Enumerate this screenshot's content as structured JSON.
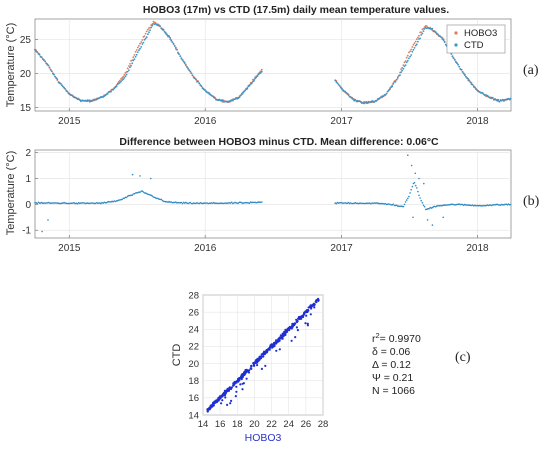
{
  "chart_data": [
    {
      "type": "scatter",
      "panel_label": "(a)",
      "title": "HOBO3 (17m) vs CTD (17.5m) daily mean temperature values.",
      "ylabel": "Temperature (°C)",
      "xlabel": "",
      "xlim": [
        "2014-10-01",
        "2018-04-01"
      ],
      "ylim": [
        14.5,
        28
      ],
      "yticks": [
        15,
        20,
        25
      ],
      "xticks": [
        {
          "label": "2015",
          "date": "2015-01-01"
        },
        {
          "label": "2016",
          "date": "2016-01-01"
        },
        {
          "label": "2017",
          "date": "2017-01-01"
        },
        {
          "label": "2018",
          "date": "2018-01-01"
        }
      ],
      "grid": true,
      "legend_position": "top-right",
      "series": [
        {
          "name": "HOBO3",
          "color": "#e37b5d",
          "segments": [
            {
              "x": [
                "2014-10-01",
                "2014-11-01",
                "2014-12-01",
                "2015-01-01",
                "2015-02-01",
                "2015-03-01",
                "2015-04-01",
                "2015-05-01",
                "2015-06-01",
                "2015-07-01",
                "2015-08-01",
                "2015-08-15",
                "2015-09-01",
                "2015-10-01",
                "2015-11-01",
                "2015-12-01",
                "2016-01-01",
                "2016-02-01",
                "2016-03-01",
                "2016-04-01",
                "2016-05-01",
                "2016-06-01"
              ],
              "y": [
                23.5,
                21.5,
                19.0,
                17.0,
                16.0,
                16.0,
                16.6,
                17.8,
                20.0,
                23.5,
                26.5,
                27.5,
                27.0,
                25.0,
                22.0,
                19.5,
                17.5,
                16.2,
                15.8,
                16.5,
                18.5,
                20.5
              ]
            },
            {
              "x": [
                "2016-12-15",
                "2017-01-01",
                "2017-02-01",
                "2017-03-01",
                "2017-04-01",
                "2017-05-01",
                "2017-06-01",
                "2017-07-01",
                "2017-08-01",
                "2017-08-15",
                "2017-09-01",
                "2017-10-01",
                "2017-11-01",
                "2017-12-01",
                "2018-01-01",
                "2018-02-01",
                "2018-03-01",
                "2018-04-01"
              ],
              "y": [
                19.0,
                17.8,
                16.2,
                15.7,
                15.9,
                17.0,
                19.5,
                23.0,
                26.0,
                27.0,
                26.5,
                25.0,
                22.0,
                19.5,
                17.5,
                16.5,
                16.0,
                16.3
              ]
            }
          ]
        },
        {
          "name": "CTD",
          "color": "#3b95c9",
          "segments": [
            {
              "x": [
                "2014-10-01",
                "2014-11-01",
                "2014-12-01",
                "2015-01-01",
                "2015-02-01",
                "2015-03-01",
                "2015-04-01",
                "2015-05-01",
                "2015-06-01",
                "2015-07-01",
                "2015-08-01",
                "2015-08-15",
                "2015-09-01",
                "2015-10-01",
                "2015-11-01",
                "2015-12-01",
                "2016-01-01",
                "2016-02-01",
                "2016-03-01",
                "2016-04-01",
                "2016-05-01",
                "2016-06-01"
              ],
              "y": [
                23.5,
                21.5,
                19.0,
                17.0,
                16.0,
                16.0,
                16.6,
                17.7,
                19.6,
                22.8,
                25.8,
                27.3,
                27.0,
                25.0,
                22.0,
                19.5,
                17.5,
                16.2,
                15.8,
                16.5,
                18.4,
                20.3
              ]
            },
            {
              "x": [
                "2016-12-15",
                "2017-01-01",
                "2017-02-01",
                "2017-03-01",
                "2017-04-01",
                "2017-05-01",
                "2017-06-01",
                "2017-07-01",
                "2017-08-01",
                "2017-08-15",
                "2017-09-01",
                "2017-10-01",
                "2017-11-01",
                "2017-12-01",
                "2018-01-01",
                "2018-02-01",
                "2018-03-01",
                "2018-04-01"
              ],
              "y": [
                19.0,
                17.8,
                16.2,
                15.7,
                15.9,
                17.0,
                19.3,
                22.2,
                25.4,
                26.8,
                26.5,
                25.0,
                22.0,
                19.5,
                17.5,
                16.5,
                16.0,
                16.3
              ]
            }
          ]
        }
      ]
    },
    {
      "type": "scatter",
      "panel_label": "(b)",
      "title": "Difference between HOBO3 minus CTD. Mean difference: 0.06°C",
      "ylabel": "Temperature (°C)",
      "xlabel": "",
      "xlim": [
        "2014-10-01",
        "2018-04-01"
      ],
      "ylim": [
        -1.3,
        2.1
      ],
      "yticks": [
        -1,
        0,
        1,
        2
      ],
      "xticks": [
        {
          "label": "2015",
          "date": "2015-01-01"
        },
        {
          "label": "2016",
          "date": "2016-01-01"
        },
        {
          "label": "2017",
          "date": "2017-01-01"
        },
        {
          "label": "2018",
          "date": "2018-01-01"
        }
      ],
      "grid": true,
      "series": [
        {
          "color": "#2f8ac4",
          "segments": [
            {
              "x": [
                "2014-10-01",
                "2014-12-01",
                "2015-02-01",
                "2015-04-01",
                "2015-05-15",
                "2015-06-15",
                "2015-07-15",
                "2015-08-15",
                "2015-09-15",
                "2015-11-01",
                "2016-01-01",
                "2016-03-01",
                "2016-05-01",
                "2016-06-01"
              ],
              "y": [
                0.05,
                0.05,
                0.04,
                0.05,
                0.15,
                0.35,
                0.5,
                0.3,
                0.1,
                0.05,
                0.04,
                0.05,
                0.06,
                0.08
              ]
            },
            {
              "x": [
                "2016-12-15",
                "2017-02-01",
                "2017-04-01",
                "2017-05-15",
                "2017-06-15",
                "2017-07-01",
                "2017-07-15",
                "2017-08-01",
                "2017-08-15",
                "2017-09-15",
                "2017-11-01",
                "2018-01-01",
                "2018-04-01"
              ],
              "y": [
                0.05,
                0.05,
                0.04,
                0.0,
                -0.1,
                0.3,
                0.9,
                0.2,
                -0.2,
                -0.05,
                0.0,
                -0.05,
                0.0
              ]
            }
          ],
          "outliers": {
            "x": [
              "2014-10-20",
              "2014-11-05",
              "2015-06-20",
              "2015-07-10",
              "2015-08-08",
              "2017-06-28",
              "2017-07-08",
              "2017-07-18",
              "2017-07-28",
              "2017-08-10",
              "2017-08-20",
              "2017-09-02",
              "2017-07-12",
              "2017-10-01"
            ],
            "y": [
              -1.05,
              -0.6,
              1.15,
              1.1,
              1.0,
              1.9,
              1.5,
              1.2,
              1.0,
              0.8,
              -0.6,
              -0.8,
              -0.5,
              -0.5
            ]
          }
        }
      ]
    },
    {
      "type": "scatter",
      "panel_label": "(c)",
      "title": "",
      "xlabel": "HOBO3",
      "ylabel": "CTD",
      "xlim": [
        14,
        28
      ],
      "ylim": [
        14,
        28
      ],
      "xticks": [
        14,
        16,
        18,
        20,
        22,
        24,
        26,
        28
      ],
      "yticks": [
        14,
        16,
        18,
        20,
        22,
        24,
        26,
        28
      ],
      "grid": true,
      "series": [
        {
          "color": "#1f2fd1",
          "x": [
            14.5,
            16,
            18,
            20,
            22,
            24,
            26,
            27.5
          ],
          "y": [
            14.5,
            16,
            18,
            20,
            22,
            24,
            26,
            27.5
          ]
        }
      ],
      "stats": {
        "r2_label": "r",
        "r2_sup": "2",
        "r2_value": "= 0.9970",
        "delta": "δ = 0.06",
        "Delta": "Δ = 0.12",
        "psi": "Ψ = 0.21",
        "n": "N = 1066"
      }
    }
  ]
}
